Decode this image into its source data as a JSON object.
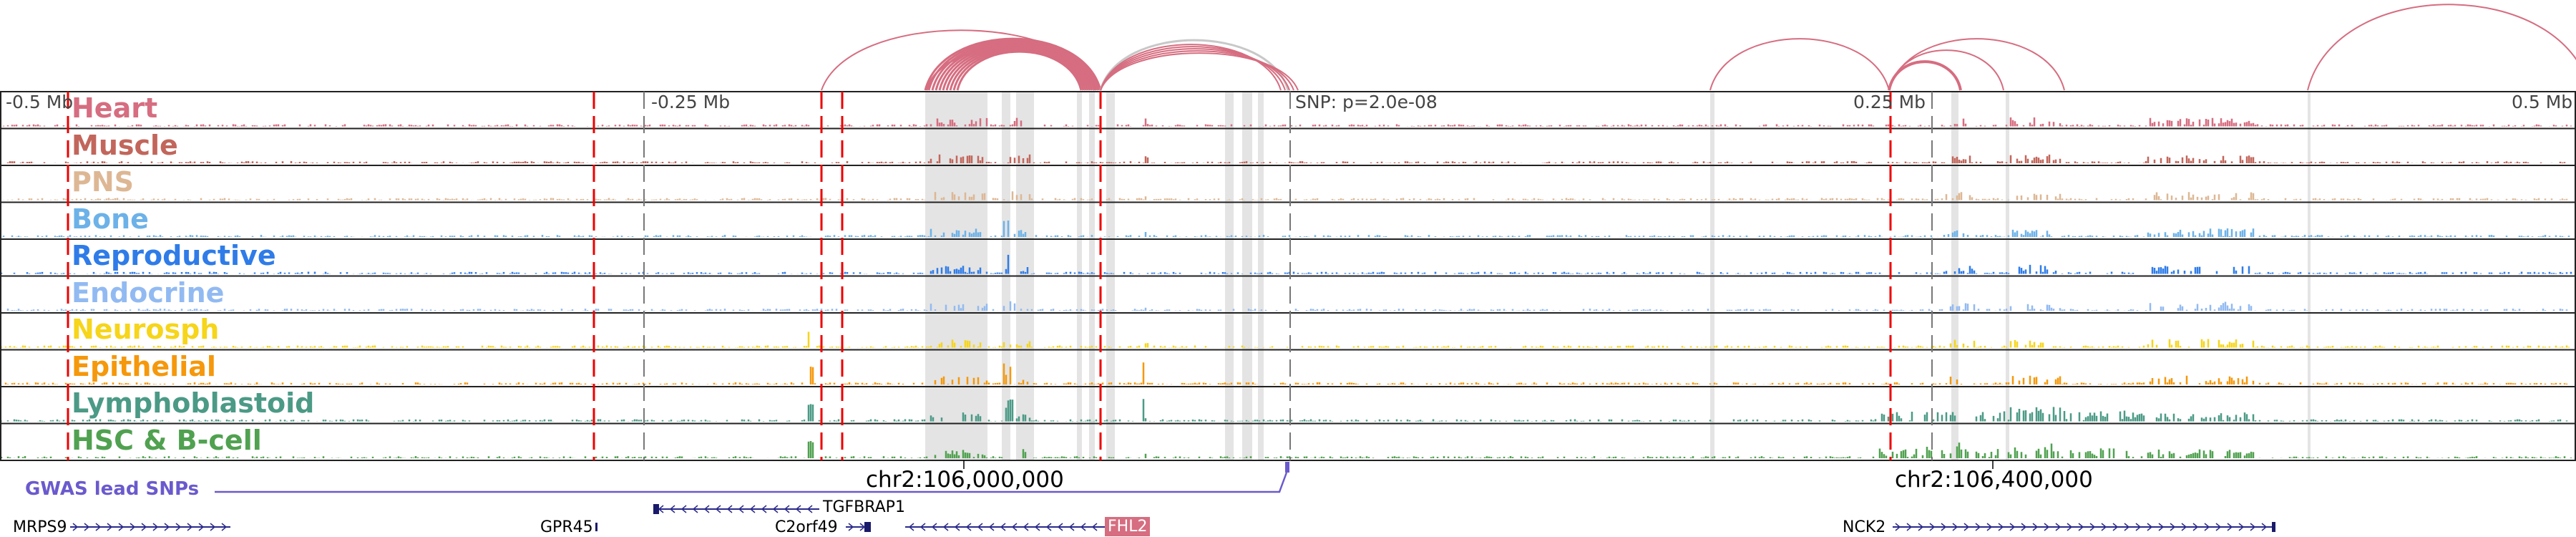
{
  "tracks": [
    {
      "name": "Heart",
      "color": "#d66d80"
    },
    {
      "name": "Muscle",
      "color": "#c2665b"
    },
    {
      "name": "PNS",
      "color": "#ddb794"
    },
    {
      "name": "Bone",
      "color": "#6cb2e8"
    },
    {
      "name": "Reproductive",
      "color": "#2f7ce8"
    },
    {
      "name": "Endocrine",
      "color": "#92baf2"
    },
    {
      "name": "Neurosph",
      "color": "#f6d51a"
    },
    {
      "name": "Epithelial",
      "color": "#f5980c"
    },
    {
      "name": "Lymphoblastoid",
      "color": "#4b9a86"
    },
    {
      "name": "HSC & B-cell",
      "color": "#50a150"
    }
  ],
  "axis": {
    "left": "-0.5 Mb",
    "left_mid": "-0.25 Mb",
    "snp": "SNP: p=2.0e-08",
    "right_mid": "0.25 Mb",
    "right": "0.5 Mb"
  },
  "coords": {
    "a": "chr2:106,000,000",
    "b": "chr2:106,400,000"
  },
  "gwas": {
    "label": "GWAS lead SNPs",
    "color": "#6a5acd"
  },
  "genes": {
    "tgfbrap1": "TGFBRAP1",
    "mrps9": "MRPS9",
    "gpr45": "GPR45",
    "c2orf49": "C2orf49",
    "fhl2": "FHL2",
    "nck2": "NCK2"
  },
  "arc_color": "#d66d80"
}
